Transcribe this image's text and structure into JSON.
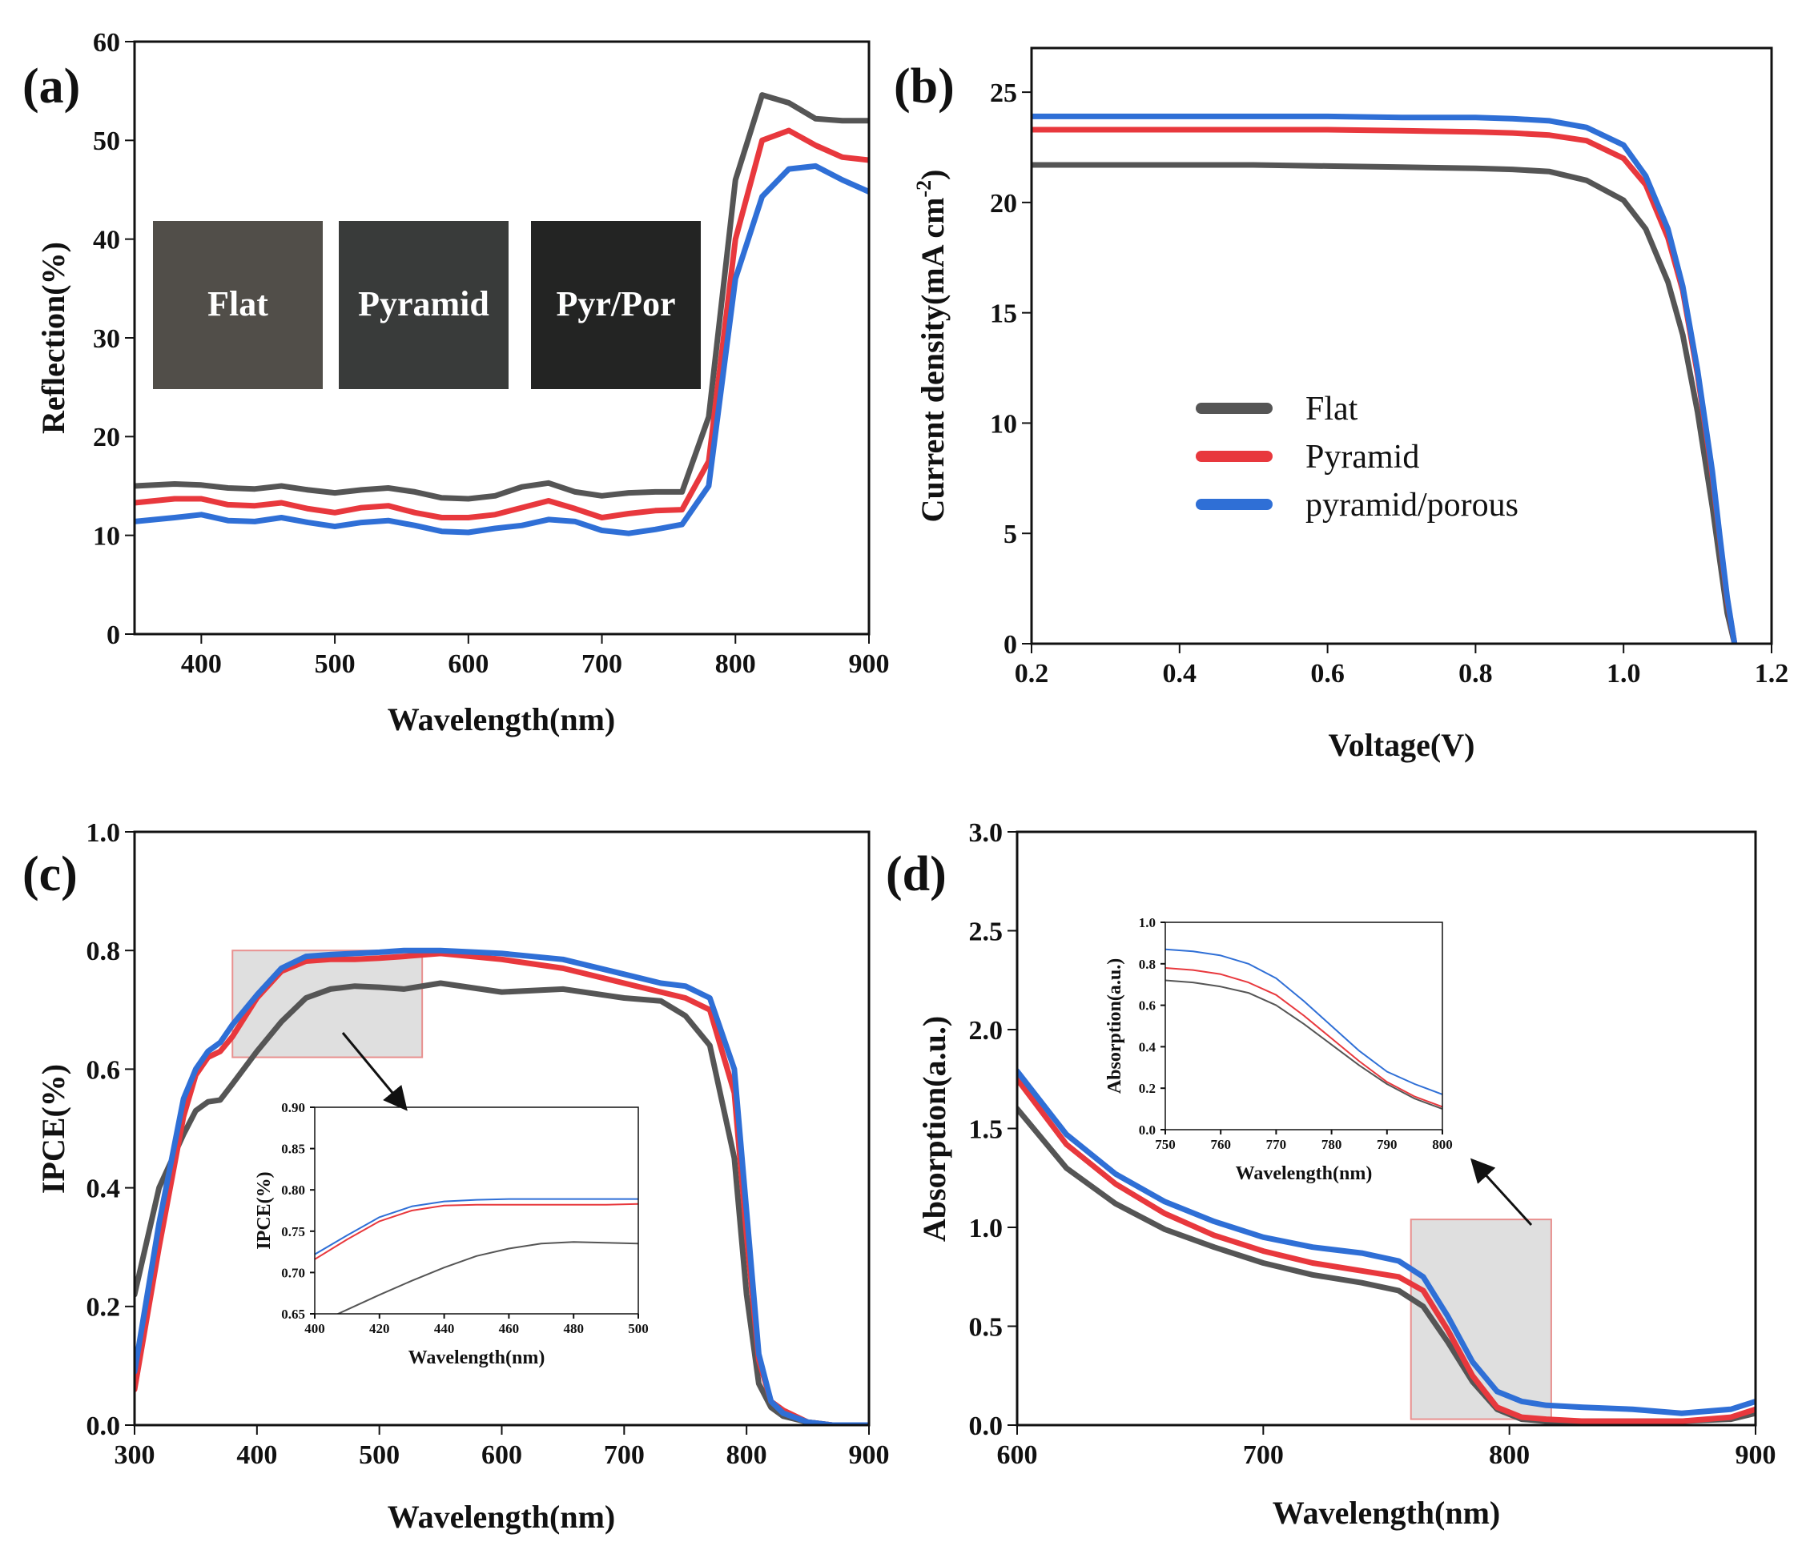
{
  "chart_data": [
    {
      "panel_label": "(a)",
      "type": "line",
      "xlabel": "Wavelength(nm)",
      "ylabel": "Reflection(%)",
      "xlim": [
        350,
        900
      ],
      "ylim": [
        0,
        60
      ],
      "xticks": [
        400,
        500,
        600,
        700,
        800,
        900
      ],
      "yticks": [
        0,
        10,
        20,
        30,
        40,
        50,
        60
      ],
      "x": [
        350,
        380,
        400,
        420,
        440,
        460,
        480,
        500,
        520,
        540,
        560,
        580,
        600,
        620,
        640,
        660,
        680,
        700,
        720,
        740,
        760,
        780,
        800,
        820,
        840,
        860,
        880,
        900
      ],
      "series": [
        {
          "name": "Flat",
          "color": "#555555",
          "values": [
            15.0,
            15.2,
            15.1,
            14.8,
            14.7,
            15.0,
            14.6,
            14.3,
            14.6,
            14.8,
            14.4,
            13.8,
            13.7,
            14.0,
            14.9,
            15.3,
            14.4,
            14.0,
            14.3,
            14.4,
            14.4,
            22.0,
            46.0,
            54.6,
            53.8,
            52.2,
            52.0,
            52.0
          ]
        },
        {
          "name": "Pyramid",
          "color": "#e8383d",
          "values": [
            13.3,
            13.7,
            13.7,
            13.1,
            13.0,
            13.3,
            12.7,
            12.3,
            12.8,
            13.0,
            12.3,
            11.8,
            11.8,
            12.1,
            12.8,
            13.5,
            12.7,
            11.8,
            12.2,
            12.5,
            12.6,
            17.5,
            40.0,
            50.0,
            51.0,
            49.5,
            48.3,
            48.0
          ]
        },
        {
          "name": "pyramid/porous",
          "color": "#2f6fd6",
          "values": [
            11.4,
            11.8,
            12.1,
            11.5,
            11.4,
            11.8,
            11.3,
            10.9,
            11.3,
            11.5,
            11.0,
            10.4,
            10.3,
            10.7,
            11.0,
            11.6,
            11.4,
            10.5,
            10.2,
            10.6,
            11.1,
            15.0,
            36.0,
            44.3,
            47.1,
            47.4,
            46.0,
            44.8
          ]
        }
      ],
      "inset_swatches": [
        {
          "label": "Flat",
          "color": "#514e49"
        },
        {
          "label": "Pyramid",
          "color": "#393b3a"
        },
        {
          "label": "Pyr/Por",
          "color": "#232423"
        }
      ]
    },
    {
      "panel_label": "(b)",
      "type": "line",
      "xlabel": "Voltage(V)",
      "ylabel": "Current density(mA cm",
      "ylabel_superscript": "-2",
      "ylabel_suffix": ")",
      "xlim": [
        0.2,
        1.2
      ],
      "ylim": [
        0,
        27
      ],
      "xticks": [
        "0.2",
        "0.4",
        "0.6",
        "0.8",
        "1.0",
        "1.2"
      ],
      "yticks": [
        0,
        5,
        10,
        15,
        20,
        25
      ],
      "legend_position": "center",
      "x": [
        0.2,
        0.3,
        0.4,
        0.5,
        0.6,
        0.7,
        0.8,
        0.85,
        0.9,
        0.95,
        1.0,
        1.03,
        1.06,
        1.08,
        1.1,
        1.12,
        1.13,
        1.14,
        1.15
      ],
      "series": [
        {
          "name": "Flat",
          "color": "#555555",
          "values": [
            21.7,
            21.7,
            21.7,
            21.7,
            21.65,
            21.6,
            21.55,
            21.5,
            21.4,
            21.0,
            20.1,
            18.8,
            16.4,
            14.0,
            10.5,
            6.2,
            3.8,
            1.4,
            0.0
          ]
        },
        {
          "name": "Pyramid",
          "color": "#e8383d",
          "values": [
            23.3,
            23.3,
            23.3,
            23.3,
            23.3,
            23.25,
            23.2,
            23.15,
            23.05,
            22.8,
            22.0,
            20.8,
            18.4,
            16.0,
            12.2,
            7.6,
            4.8,
            2.0,
            0.0
          ]
        },
        {
          "name": "pyramid/porous",
          "color": "#2f6fd6",
          "values": [
            23.9,
            23.9,
            23.9,
            23.9,
            23.9,
            23.85,
            23.85,
            23.8,
            23.7,
            23.4,
            22.6,
            21.2,
            18.8,
            16.2,
            12.4,
            7.8,
            4.9,
            2.1,
            0.0
          ]
        }
      ]
    },
    {
      "panel_label": "(c)",
      "type": "line",
      "xlabel": "Wavelength(nm)",
      "ylabel": "IPCE(%)",
      "xlim": [
        300,
        900
      ],
      "ylim": [
        0,
        1
      ],
      "xticks": [
        300,
        400,
        500,
        600,
        700,
        800,
        900
      ],
      "yticks": [
        "0.0",
        "0.2",
        "0.4",
        "0.6",
        "0.8",
        "1.0"
      ],
      "x": [
        300,
        320,
        340,
        350,
        360,
        370,
        380,
        400,
        420,
        440,
        460,
        480,
        500,
        520,
        550,
        600,
        650,
        700,
        730,
        750,
        770,
        790,
        800,
        810,
        820,
        830,
        850,
        870,
        900
      ],
      "series": [
        {
          "name": "Flat",
          "color": "#555555",
          "values": [
            0.22,
            0.4,
            0.49,
            0.53,
            0.545,
            0.548,
            0.575,
            0.63,
            0.68,
            0.72,
            0.735,
            0.74,
            0.738,
            0.735,
            0.745,
            0.73,
            0.735,
            0.72,
            0.715,
            0.69,
            0.64,
            0.45,
            0.22,
            0.07,
            0.03,
            0.015,
            0.005,
            0.0,
            0.0
          ]
        },
        {
          "name": "Pyramid",
          "color": "#e8383d",
          "values": [
            0.06,
            0.3,
            0.52,
            0.59,
            0.62,
            0.63,
            0.655,
            0.72,
            0.765,
            0.782,
            0.785,
            0.785,
            0.787,
            0.79,
            0.795,
            0.785,
            0.77,
            0.745,
            0.73,
            0.72,
            0.7,
            0.56,
            0.32,
            0.11,
            0.04,
            0.025,
            0.005,
            0.0,
            0.0
          ]
        },
        {
          "name": "pyramid/porous",
          "color": "#2f6fd6",
          "values": [
            0.09,
            0.34,
            0.55,
            0.6,
            0.63,
            0.645,
            0.675,
            0.725,
            0.77,
            0.79,
            0.793,
            0.795,
            0.797,
            0.8,
            0.8,
            0.795,
            0.785,
            0.76,
            0.745,
            0.74,
            0.72,
            0.6,
            0.36,
            0.12,
            0.04,
            0.02,
            0.005,
            0.0,
            0.0
          ]
        }
      ],
      "zoom_region": {
        "x": [
          380,
          535
        ],
        "y": [
          0.62,
          0.8
        ]
      },
      "inset": {
        "xlabel": "Wavelength(nm)",
        "ylabel": "IPCE(%)",
        "xlim": [
          400,
          500
        ],
        "ylim": [
          0.65,
          0.9
        ],
        "xticks": [
          400,
          420,
          440,
          460,
          480,
          500
        ],
        "yticks": [
          "0.65",
          "0.70",
          "0.75",
          "0.80",
          "0.85",
          "0.90"
        ],
        "x": [
          400,
          410,
          420,
          430,
          440,
          450,
          460,
          470,
          480,
          490,
          500
        ],
        "series": [
          {
            "name": "Flat",
            "color": "#555555",
            "values": [
              0.637,
              0.655,
              0.673,
              0.69,
              0.706,
              0.72,
              0.729,
              0.735,
              0.737,
              0.736,
              0.735
            ]
          },
          {
            "name": "Pyramid",
            "color": "#e8383d",
            "values": [
              0.716,
              0.74,
              0.762,
              0.775,
              0.781,
              0.782,
              0.782,
              0.782,
              0.782,
              0.782,
              0.783
            ]
          },
          {
            "name": "pyramid/porous",
            "color": "#2f6fd6",
            "values": [
              0.722,
              0.745,
              0.767,
              0.78,
              0.786,
              0.788,
              0.789,
              0.789,
              0.789,
              0.789,
              0.789
            ]
          }
        ]
      }
    },
    {
      "panel_label": "(d)",
      "type": "line",
      "xlabel": "Wavelength(nm)",
      "ylabel": "Absorption(a.u.)",
      "xlim": [
        600,
        900
      ],
      "ylim": [
        0,
        3
      ],
      "xticks": [
        600,
        700,
        800,
        900
      ],
      "yticks": [
        "0.0",
        "0.5",
        "1.0",
        "1.5",
        "2.0",
        "2.5",
        "3.0"
      ],
      "x": [
        600,
        620,
        640,
        660,
        680,
        700,
        720,
        740,
        755,
        765,
        775,
        785,
        795,
        805,
        815,
        830,
        850,
        870,
        890,
        900
      ],
      "series": [
        {
          "name": "Flat",
          "color": "#555555",
          "values": [
            1.6,
            1.3,
            1.12,
            0.99,
            0.9,
            0.82,
            0.76,
            0.72,
            0.68,
            0.6,
            0.42,
            0.22,
            0.08,
            0.03,
            0.02,
            0.02,
            0.02,
            0.02,
            0.03,
            0.06
          ]
        },
        {
          "name": "Pyramid",
          "color": "#e8383d",
          "values": [
            1.75,
            1.42,
            1.22,
            1.07,
            0.96,
            0.88,
            0.82,
            0.78,
            0.75,
            0.68,
            0.48,
            0.25,
            0.09,
            0.04,
            0.03,
            0.02,
            0.02,
            0.02,
            0.04,
            0.08
          ]
        },
        {
          "name": "pyramid/porous",
          "color": "#2f6fd6",
          "values": [
            1.79,
            1.47,
            1.27,
            1.13,
            1.03,
            0.95,
            0.9,
            0.87,
            0.83,
            0.75,
            0.55,
            0.32,
            0.17,
            0.12,
            0.1,
            0.09,
            0.08,
            0.06,
            0.08,
            0.12
          ]
        }
      ],
      "zoom_region": {
        "x": [
          760,
          817
        ],
        "y": [
          0.03,
          1.04
        ]
      },
      "inset": {
        "xlabel": "Wavelength(nm)",
        "ylabel": "Absorption(a.u.)",
        "xlim": [
          750,
          800
        ],
        "ylim": [
          0,
          1
        ],
        "xticks": [
          750,
          760,
          770,
          780,
          790,
          800
        ],
        "yticks": [
          "0.0",
          "0.2",
          "0.4",
          "0.6",
          "0.8",
          "1.0"
        ],
        "x": [
          750,
          755,
          760,
          765,
          770,
          775,
          780,
          785,
          790,
          795,
          800
        ],
        "series": [
          {
            "name": "Flat",
            "color": "#555555",
            "values": [
              0.72,
              0.71,
              0.69,
              0.66,
              0.6,
              0.51,
              0.41,
              0.31,
              0.22,
              0.15,
              0.1
            ]
          },
          {
            "name": "Pyramid",
            "color": "#e8383d",
            "values": [
              0.78,
              0.77,
              0.75,
              0.71,
              0.65,
              0.55,
              0.44,
              0.33,
              0.23,
              0.16,
              0.11
            ]
          },
          {
            "name": "pyramid/porous",
            "color": "#2f6fd6",
            "values": [
              0.87,
              0.86,
              0.84,
              0.8,
              0.73,
              0.62,
              0.5,
              0.38,
              0.28,
              0.22,
              0.17
            ]
          }
        ]
      }
    }
  ]
}
